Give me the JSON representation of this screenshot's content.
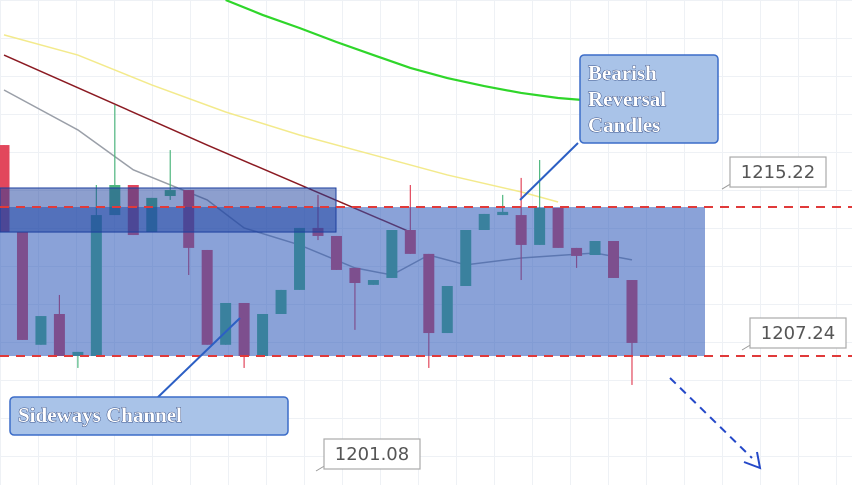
{
  "chart_data": {
    "type": "candlestick",
    "ylim": [
      1200.33,
      1226.31
    ],
    "up_color": "#4fb77f",
    "down_color": "#e2475c",
    "open": [
      1218.54,
      1213.88,
      1207.84,
      1209.49,
      1207.24,
      1207.24,
      1214.79,
      1216.4,
      1213.88,
      1215.81,
      1216.13,
      1212.92,
      1207.84,
      1210.08,
      1207.24,
      1209.49,
      1210.78,
      1214.1,
      1213.67,
      1211.96,
      1211.05,
      1211.42,
      1213.99,
      1212.71,
      1208.47,
      1210.99,
      1213.99,
      1214.79,
      1214.79,
      1213.19,
      1215.17,
      1213.03,
      1212.65,
      1213.4,
      1211.31
    ],
    "high": [
      1218.54,
      1213.88,
      1209.38,
      1210.51,
      1207.46,
      1216.4,
      1220.69,
      1216.4,
      1215.71,
      1218.27,
      1216.13,
      1212.92,
      1210.08,
      1210.08,
      1209.49,
      1210.78,
      1214.1,
      1215.87,
      1213.67,
      1211.96,
      1211.31,
      1213.99,
      1216.4,
      1212.71,
      1210.99,
      1213.99,
      1214.85,
      1215.87,
      1216.78,
      1217.74,
      1215.17,
      1213.03,
      1213.4,
      1213.4,
      1211.31
    ],
    "low": [
      1213.88,
      1208.1,
      1207.84,
      1207.24,
      1206.6,
      1207.24,
      1214.79,
      1213.72,
      1213.88,
      1215.6,
      1211.58,
      1207.84,
      1207.84,
      1206.6,
      1207.24,
      1209.49,
      1210.78,
      1213.45,
      1211.85,
      1208.64,
      1211.05,
      1211.42,
      1212.71,
      1206.6,
      1208.47,
      1210.99,
      1213.99,
      1214.79,
      1211.31,
      1213.19,
      1213.03,
      1211.96,
      1212.65,
      1211.42,
      1205.69
    ],
    "close": [
      1213.88,
      1208.1,
      1209.38,
      1207.24,
      1207.46,
      1214.79,
      1216.4,
      1213.72,
      1215.71,
      1216.13,
      1213.03,
      1207.84,
      1210.08,
      1207.24,
      1209.49,
      1210.78,
      1214.1,
      1213.67,
      1211.85,
      1211.15,
      1211.31,
      1213.99,
      1212.71,
      1208.47,
      1210.99,
      1213.99,
      1214.85,
      1214.96,
      1213.19,
      1215.17,
      1213.03,
      1212.6,
      1213.4,
      1211.42,
      1207.94
    ],
    "moving_averages": [
      {
        "color": "#2fd62a",
        "x": [
          12,
          14,
          16,
          18,
          20,
          22,
          24,
          26,
          28,
          30,
          32,
          34
        ],
        "values": [
          1226.31,
          1225.51,
          1224.81,
          1224.06,
          1223.36,
          1222.67,
          1222.13,
          1221.7,
          1221.33,
          1221.06,
          1220.9,
          1220.74
        ]
      },
      {
        "color": "#f3ea8c",
        "x": [
          0,
          4,
          8,
          12,
          16,
          20,
          24,
          28,
          30
        ],
        "values": [
          1224.44,
          1223.36,
          1221.76,
          1220.31,
          1219.08,
          1218.01,
          1216.94,
          1216.03,
          1215.49
        ]
      },
      {
        "color": "#8b1a22",
        "x": [
          0,
          11,
          22
        ],
        "values": [
          1223.36,
          1218.54,
          1213.88
        ]
      },
      {
        "color": "#9a9fa8",
        "x": [
          0,
          4,
          7,
          11,
          13,
          16,
          19,
          21,
          23,
          25,
          28,
          32,
          34
        ],
        "values": [
          1221.49,
          1219.35,
          1217.21,
          1215.6,
          1214.1,
          1213.19,
          1211.96,
          1211.58,
          1212.65,
          1212.12,
          1212.49,
          1212.76,
          1212.39
        ]
      }
    ],
    "levels": [
      1215.22,
      1207.24
    ],
    "level_color": "#e03a3a",
    "upper_zone": [
      1213.88,
      1216.24
    ],
    "low_label": 1201.08,
    "annotations": [
      {
        "lines": [
          "Bearish",
          "Reversal",
          "Candles"
        ]
      },
      {
        "lines": [
          "Sideways Channel"
        ]
      }
    ]
  }
}
